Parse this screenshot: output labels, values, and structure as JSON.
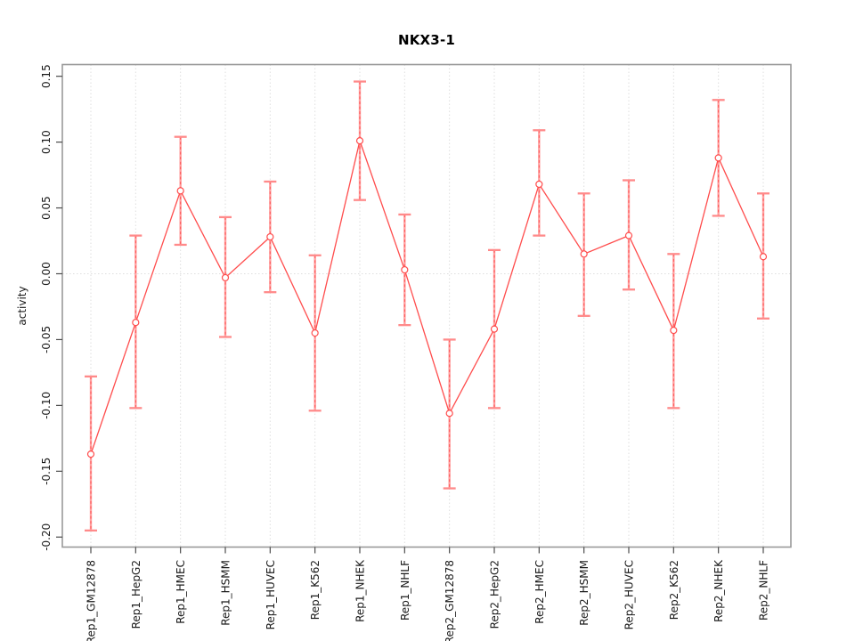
{
  "chart_data": {
    "type": "line",
    "title": "NKX3-1",
    "xlabel": "",
    "ylabel": "activity",
    "legend": null,
    "grid": "dotted vertical gridline at each category; dotted horizontal line at y=0",
    "ylim": [
      -0.2076,
      0.1589
    ],
    "yticks": [
      0.15,
      0.1,
      0.05,
      0.0,
      -0.05,
      -0.1,
      -0.15,
      -0.2
    ],
    "ytick_labels": [
      "0.15",
      "0.10",
      "0.05",
      "0.00",
      "-0.05",
      "-0.10",
      "-0.15",
      "-0.20"
    ],
    "categories": [
      "Rep1_GM12878",
      "Rep1_HepG2",
      "Rep1_HMEC",
      "Rep1_HSMM",
      "Rep1_HUVEC",
      "Rep1_K562",
      "Rep1_NHEK",
      "Rep1_NHLF",
      "Rep2_GM12878",
      "Rep2_HepG2",
      "Rep2_HMEC",
      "Rep2_HSMM",
      "Rep2_HUVEC",
      "Rep2_K562",
      "Rep2_NHEK",
      "Rep2_NHLF"
    ],
    "series": [
      {
        "name": "activity",
        "values": [
          -0.137,
          -0.037,
          0.063,
          -0.003,
          0.028,
          -0.045,
          0.101,
          0.003,
          -0.106,
          -0.042,
          0.068,
          0.015,
          0.029,
          -0.043,
          0.088,
          0.013
        ],
        "error_high": [
          -0.078,
          0.029,
          0.104,
          0.043,
          0.07,
          0.014,
          0.146,
          0.045,
          -0.05,
          0.018,
          0.109,
          0.061,
          0.071,
          0.015,
          0.132,
          0.061
        ],
        "error_low": [
          -0.195,
          -0.102,
          0.022,
          -0.048,
          -0.014,
          -0.104,
          0.056,
          -0.039,
          -0.163,
          -0.102,
          0.029,
          -0.032,
          -0.012,
          -0.102,
          0.044,
          -0.034
        ]
      }
    ],
    "marker": "open-circle",
    "colors": {
      "line": "#ff4d4d",
      "point": "#ff4d4d",
      "error_bar": "#ffa0a0",
      "error_cap": "#ff8a8a",
      "error_dash": "#ff5454",
      "grid": "#dedede",
      "axis_box": "#999999",
      "tick": "#4d4d4d",
      "text": "#1a1a1a",
      "background": "#ffffff"
    }
  }
}
